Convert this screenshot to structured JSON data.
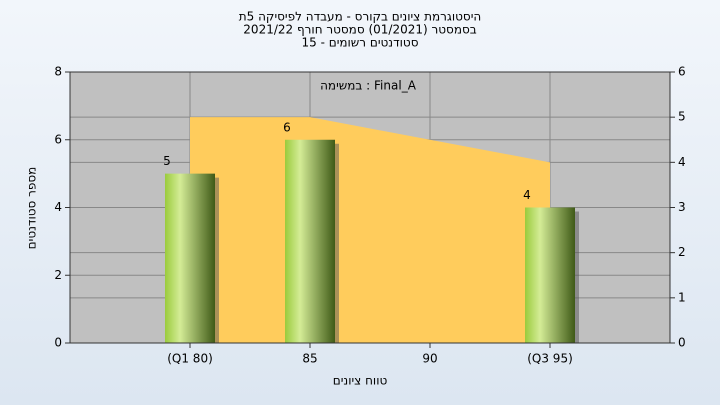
{
  "chart_data": {
    "type": "bar",
    "title": [
      "היסטוגרמת ציונים בקורס - מעבדה לפיסיקה 5ת",
      "בסמסטר (01/2021) סמסטר חורף 2021/22",
      "סטודנטים רשומים - 15"
    ],
    "annotation": "במשימה : Final_A",
    "x_label": "טווח ציונים",
    "y_label": "מספר סטודנטים",
    "categories": [
      "(Q1 80)",
      "85",
      "90",
      "(Q3 95)"
    ],
    "series": [
      {
        "type": "bar",
        "color": "#8fbf3a",
        "values": [
          5,
          6,
          null,
          4
        ]
      },
      {
        "type": "area",
        "color": "#ffcc5c",
        "axis": "y2",
        "values": [
          5,
          5,
          4.5,
          4
        ]
      }
    ],
    "ylim": [
      0,
      8
    ],
    "yticks": [
      0,
      2,
      4,
      6,
      8
    ],
    "y2lim": [
      0,
      6
    ],
    "y2ticks": [
      0,
      1,
      2,
      3,
      4,
      5,
      6
    ],
    "grid": true
  }
}
